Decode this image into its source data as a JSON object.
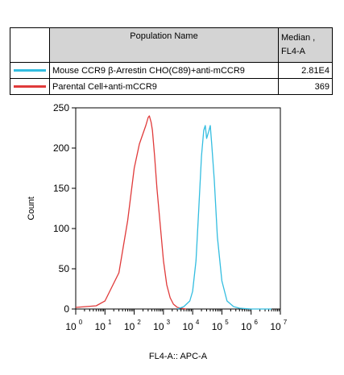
{
  "table": {
    "headers": {
      "population": "Population Name",
      "median_l1": "Median ,",
      "median_l2": "FL4-A"
    },
    "rows": [
      {
        "name": "Mouse CCR9 β-Arrestin CHO(C89)+anti-mCCR9",
        "value": "2.81E4",
        "color": "#33bde0"
      },
      {
        "name": "Parental Cell+anti-mCCR9",
        "value": "369",
        "color": "#e03a3a"
      }
    ]
  },
  "chart_data": {
    "type": "line",
    "xlabel": "FL4-A:: APC-A",
    "ylabel": "Count",
    "xscale": "log",
    "xlim": [
      1,
      10000000
    ],
    "ylim": [
      0,
      250
    ],
    "yticks": [
      "0",
      "50",
      "100",
      "150",
      "200",
      "250"
    ],
    "xtick_base": "10",
    "xtick_exponents": [
      "0",
      "1",
      "2",
      "3",
      "4",
      "5",
      "6",
      "7"
    ],
    "series": [
      {
        "color": "#e03a3a",
        "x": [
          1,
          5,
          10,
          30,
          60,
          100,
          150,
          200,
          250,
          300,
          330,
          380,
          420,
          500,
          600,
          800,
          1000,
          1300,
          1700,
          2200,
          3000,
          4000,
          6000
        ],
        "y": [
          2,
          4,
          10,
          45,
          110,
          175,
          205,
          218,
          228,
          238,
          240,
          232,
          222,
          190,
          150,
          100,
          60,
          30,
          14,
          6,
          2,
          1,
          0
        ]
      },
      {
        "color": "#33bde0",
        "x": [
          3000,
          5000,
          8000,
          10000,
          13000,
          16000,
          20000,
          24000,
          27000,
          30000,
          35000,
          40000,
          45000,
          55000,
          70000,
          100000,
          150000,
          250000,
          400000,
          1000000,
          5000000
        ],
        "y": [
          0,
          3,
          10,
          22,
          60,
          120,
          190,
          222,
          228,
          212,
          220,
          228,
          205,
          160,
          90,
          35,
          10,
          3,
          1,
          0,
          0
        ]
      }
    ]
  }
}
